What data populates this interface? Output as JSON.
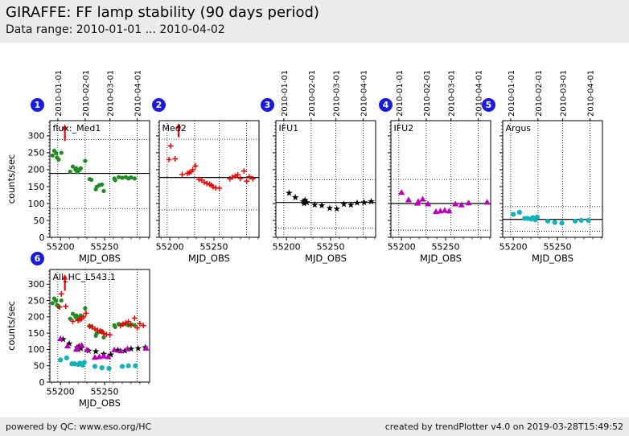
{
  "header": {
    "title": "GIRAFFE: FF lamp stability (90 days period)",
    "subtitle": "Data range: 2010-01-01 ... 2010-04-02"
  },
  "footer": {
    "left": "powered by QC: www.eso.org/HC",
    "right": "created by trendPlotter v4.0 on 2019-03-28T15:49:52"
  },
  "colors": {
    "background": "#ffffff",
    "band": "#ebebeb",
    "badge_blue": "#1a1ae0",
    "green": "#1e8c1e",
    "red": "#ee0000",
    "black": "#000000",
    "magenta": "#bb00bb",
    "cyan": "#10b3bb"
  },
  "axes": {
    "xlabel": "MJD_OBS",
    "ylabel": "counts/sec",
    "x_range": [
      55188,
      55301
    ],
    "y_range": [
      0,
      345
    ],
    "x_ticks_major": [
      55200,
      55250
    ],
    "x_minor_step": 10,
    "y_ticks_major": [
      0,
      50,
      100,
      150,
      200,
      250,
      300
    ],
    "y_minor_step": 10,
    "month_gridlines": [
      {
        "mjd": 55197,
        "label": "2010-01-01"
      },
      {
        "mjd": 55228,
        "label": "2010-02-01"
      },
      {
        "mjd": 55256,
        "label": "2010-03-01"
      },
      {
        "mjd": 55287,
        "label": "2010-04-01"
      }
    ]
  },
  "chart_data": [
    {
      "type": "scatter",
      "number": "1",
      "label": "flux:_Med1",
      "show_top_dates": true,
      "show_y_labels": true,
      "show_ylabel": true,
      "solid_line": 189,
      "dotted_lines": [
        289,
        85
      ],
      "arrow": {
        "mjd": 55205,
        "from": 285,
        "to": 334
      },
      "series": [
        {
          "name": "Med1",
          "marker": "circle",
          "color": "green",
          "points": [
            [
              55191,
              242
            ],
            [
              55193,
              256
            ],
            [
              55195,
              249
            ],
            [
              55196,
              236
            ],
            [
              55198,
              230
            ],
            [
              55201,
              250
            ],
            [
              55211,
              194
            ],
            [
              55214,
              209
            ],
            [
              55217,
              200
            ],
            [
              55218,
              204
            ],
            [
              55219,
              193
            ],
            [
              55221,
              198
            ],
            [
              55223,
              204
            ],
            [
              55228,
              226
            ],
            [
              55233,
              172
            ],
            [
              55235,
              170
            ],
            [
              55240,
              142
            ],
            [
              55241,
              149
            ],
            [
              55244,
              154
            ],
            [
              55247,
              156
            ],
            [
              55249,
              137
            ],
            [
              55261,
              174
            ],
            [
              55262,
              169
            ],
            [
              55266,
              178
            ],
            [
              55270,
              176
            ],
            [
              55274,
              178
            ],
            [
              55277,
              174
            ],
            [
              55280,
              177
            ],
            [
              55284,
              174
            ]
          ]
        }
      ]
    },
    {
      "type": "scatter",
      "number": "2",
      "label": "Med2",
      "show_top_dates": false,
      "show_y_labels": false,
      "show_ylabel": false,
      "solid_line": 177,
      "dotted_lines": [
        290,
        81
      ],
      "arrow": {
        "mjd": 55210,
        "from": 296,
        "to": 338
      },
      "series": [
        {
          "name": "Med2",
          "marker": "plus",
          "color": "red",
          "points": [
            [
              55199,
              230
            ],
            [
              55201,
              270
            ],
            [
              55206,
              232
            ],
            [
              55214,
              186
            ],
            [
              55220,
              189
            ],
            [
              55222,
              191
            ],
            [
              55224,
              194
            ],
            [
              55226,
              200
            ],
            [
              55229,
              211
            ],
            [
              55233,
              171
            ],
            [
              55236,
              169
            ],
            [
              55239,
              163
            ],
            [
              55242,
              159
            ],
            [
              55245,
              157
            ],
            [
              55247,
              154
            ],
            [
              55249,
              149
            ],
            [
              55252,
              146
            ],
            [
              55256,
              145
            ],
            [
              55268,
              173
            ],
            [
              55271,
              178
            ],
            [
              55274,
              181
            ],
            [
              55277,
              185
            ],
            [
              55280,
              174
            ],
            [
              55284,
              196
            ],
            [
              55287,
              166
            ],
            [
              55290,
              179
            ],
            [
              55294,
              173
            ]
          ]
        }
      ]
    },
    {
      "type": "scatter",
      "number": "3",
      "label": "IFU1",
      "show_top_dates": true,
      "show_y_labels": false,
      "show_ylabel": false,
      "solid_line": 103,
      "dotted_lines": [
        170,
        27
      ],
      "arrow": null,
      "series": [
        {
          "name": "IFU1",
          "marker": "star",
          "color": "black",
          "points": [
            [
              55203,
              131
            ],
            [
              55210,
              118
            ],
            [
              55219,
              106
            ],
            [
              55220,
              100
            ],
            [
              55221,
              110
            ],
            [
              55223,
              103
            ],
            [
              55232,
              96
            ],
            [
              55240,
              94
            ],
            [
              55249,
              86
            ],
            [
              55257,
              84
            ],
            [
              55265,
              98
            ],
            [
              55273,
              96
            ],
            [
              55280,
              102
            ],
            [
              55288,
              103
            ],
            [
              55296,
              106
            ]
          ]
        }
      ]
    },
    {
      "type": "scatter",
      "number": "4",
      "label": "IFU2",
      "show_top_dates": true,
      "show_y_labels": false,
      "show_ylabel": false,
      "solid_line": 100,
      "dotted_lines": [
        171,
        21
      ],
      "arrow": null,
      "series": [
        {
          "name": "IFU2",
          "marker": "triangle",
          "color": "magenta",
          "points": [
            [
              55200,
              133
            ],
            [
              55208,
              111
            ],
            [
              55218,
              101
            ],
            [
              55219,
              106
            ],
            [
              55224,
              113
            ],
            [
              55230,
              99
            ],
            [
              55239,
              76
            ],
            [
              55244,
              78
            ],
            [
              55249,
              80
            ],
            [
              55254,
              78
            ],
            [
              55261,
              99
            ],
            [
              55268,
              96
            ],
            [
              55276,
              102
            ],
            [
              55297,
              104
            ]
          ]
        }
      ]
    },
    {
      "type": "scatter",
      "number": "5",
      "label": "Argus",
      "show_top_dates": true,
      "show_y_labels": false,
      "show_ylabel": false,
      "solid_line": 53,
      "dotted_lines": [
        91,
        18
      ],
      "arrow": null,
      "series": [
        {
          "name": "Argus",
          "marker": "circle",
          "color": "cyan",
          "size": 3.1,
          "points": [
            [
              55200,
              68
            ],
            [
              55207,
              74
            ],
            [
              55213,
              56
            ],
            [
              55216,
              56
            ],
            [
              55220,
              54
            ],
            [
              55222,
              58
            ],
            [
              55225,
              52
            ],
            [
              55227,
              60
            ],
            [
              55239,
              48
            ],
            [
              55247,
              44
            ],
            [
              55255,
              42
            ],
            [
              55270,
              48
            ],
            [
              55277,
              50
            ],
            [
              55285,
              50
            ]
          ]
        }
      ]
    },
    {
      "type": "scatter",
      "number": "6",
      "label": "All_HC_L543.1",
      "show_top_dates": false,
      "show_y_labels": true,
      "show_ylabel": true,
      "solid_line": null,
      "dotted_lines": [],
      "arrow": {
        "mjd": 55205,
        "from": 280,
        "to": 330
      },
      "series": [
        {
          "name": "Med1",
          "marker": "circle",
          "color": "green",
          "points": [
            [
              55191,
              242
            ],
            [
              55193,
              256
            ],
            [
              55195,
              249
            ],
            [
              55196,
              236
            ],
            [
              55198,
              230
            ],
            [
              55201,
              250
            ],
            [
              55211,
              194
            ],
            [
              55214,
              209
            ],
            [
              55217,
              200
            ],
            [
              55218,
              204
            ],
            [
              55219,
              193
            ],
            [
              55221,
              198
            ],
            [
              55223,
              204
            ],
            [
              55228,
              226
            ],
            [
              55233,
              172
            ],
            [
              55235,
              170
            ],
            [
              55240,
              142
            ],
            [
              55241,
              149
            ],
            [
              55244,
              154
            ],
            [
              55247,
              156
            ],
            [
              55249,
              137
            ],
            [
              55261,
              174
            ],
            [
              55262,
              169
            ],
            [
              55266,
              178
            ],
            [
              55270,
              176
            ],
            [
              55274,
              178
            ],
            [
              55277,
              174
            ],
            [
              55280,
              177
            ],
            [
              55284,
              174
            ]
          ]
        },
        {
          "name": "Med2",
          "marker": "plus",
          "color": "red",
          "points": [
            [
              55199,
              230
            ],
            [
              55201,
              270
            ],
            [
              55206,
              232
            ],
            [
              55214,
              186
            ],
            [
              55220,
              189
            ],
            [
              55222,
              191
            ],
            [
              55224,
              194
            ],
            [
              55226,
              200
            ],
            [
              55229,
              211
            ],
            [
              55233,
              171
            ],
            [
              55236,
              169
            ],
            [
              55239,
              163
            ],
            [
              55242,
              159
            ],
            [
              55245,
              157
            ],
            [
              55247,
              154
            ],
            [
              55249,
              149
            ],
            [
              55252,
              146
            ],
            [
              55256,
              145
            ],
            [
              55268,
              173
            ],
            [
              55271,
              178
            ],
            [
              55274,
              181
            ],
            [
              55277,
              185
            ],
            [
              55280,
              174
            ],
            [
              55284,
              196
            ],
            [
              55287,
              166
            ],
            [
              55290,
              179
            ],
            [
              55294,
              173
            ]
          ]
        },
        {
          "name": "IFU1",
          "marker": "star",
          "color": "black",
          "points": [
            [
              55203,
              131
            ],
            [
              55210,
              118
            ],
            [
              55219,
              106
            ],
            [
              55220,
              100
            ],
            [
              55221,
              110
            ],
            [
              55223,
              103
            ],
            [
              55232,
              96
            ],
            [
              55240,
              94
            ],
            [
              55249,
              86
            ],
            [
              55257,
              84
            ],
            [
              55265,
              98
            ],
            [
              55273,
              96
            ],
            [
              55280,
              102
            ],
            [
              55288,
              103
            ],
            [
              55296,
              106
            ]
          ]
        },
        {
          "name": "IFU2",
          "marker": "triangle",
          "color": "magenta",
          "points": [
            [
              55200,
              133
            ],
            [
              55208,
              111
            ],
            [
              55218,
              101
            ],
            [
              55219,
              106
            ],
            [
              55224,
              113
            ],
            [
              55230,
              99
            ],
            [
              55239,
              76
            ],
            [
              55244,
              78
            ],
            [
              55249,
              80
            ],
            [
              55254,
              78
            ],
            [
              55261,
              99
            ],
            [
              55268,
              96
            ],
            [
              55276,
              102
            ],
            [
              55297,
              104
            ]
          ]
        },
        {
          "name": "Argus",
          "marker": "circle",
          "color": "cyan",
          "size": 3.1,
          "points": [
            [
              55200,
              68
            ],
            [
              55207,
              74
            ],
            [
              55213,
              56
            ],
            [
              55216,
              56
            ],
            [
              55220,
              54
            ],
            [
              55222,
              58
            ],
            [
              55225,
              52
            ],
            [
              55227,
              60
            ],
            [
              55239,
              48
            ],
            [
              55247,
              44
            ],
            [
              55255,
              42
            ],
            [
              55270,
              48
            ],
            [
              55277,
              50
            ],
            [
              55285,
              50
            ]
          ]
        }
      ]
    }
  ]
}
